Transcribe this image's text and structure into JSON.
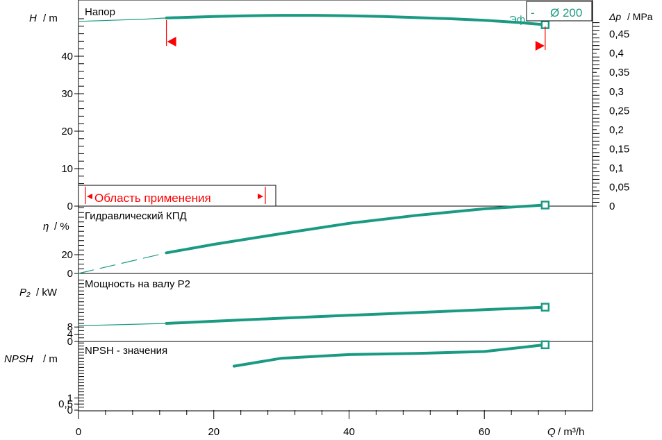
{
  "colors": {
    "curve": "#1a9a83",
    "axis": "#000000",
    "range": "#ff0000",
    "grid": "#000000"
  },
  "chart_data": [
    {
      "type": "line",
      "title": "Напор",
      "ylabel_var": "H",
      "ylabel_unit": "/ m",
      "ylim": [
        0,
        50
      ],
      "yticks": [
        0,
        10,
        20,
        30,
        40
      ],
      "y2label_var": "Δp",
      "y2label_unit": "/ MPa",
      "y2ticks": [
        "0",
        "0,05",
        "0,1",
        "0,15",
        "0,2",
        "0,25",
        "0,3",
        "0,35",
        "0,4",
        "0,45"
      ],
      "y2values": [
        0,
        0.05,
        0.1,
        0.15,
        0.2,
        0.25,
        0.3,
        0.35,
        0.4,
        0.45
      ],
      "series": [
        {
          "thin_x": [
            0,
            5,
            10,
            13
          ],
          "thin_y": [
            49.3,
            49.6,
            49.9,
            50.2
          ],
          "x": [
            13,
            20,
            25,
            30,
            35,
            40,
            45,
            50,
            55,
            60,
            65,
            69
          ],
          "y": [
            50.2,
            50.6,
            50.8,
            50.9,
            50.9,
            50.8,
            50.6,
            50.3,
            50.0,
            49.6,
            49.0,
            48.4
          ]
        }
      ],
      "operating_point": {
        "x": 69,
        "y": 48.4
      },
      "range_markers": [
        13,
        69
      ],
      "legend": {
        "prefix": "-",
        "label": "Ø 200",
        "overlap_text": "Эф"
      },
      "application_range_label": "Область применения"
    },
    {
      "type": "line",
      "title": "Гидравлический КПД",
      "ylabel_var": "η",
      "ylabel_unit": "/ %",
      "yticks": [
        0,
        20
      ],
      "series": [
        {
          "dash_x": [
            0,
            13
          ],
          "dash_y": [
            0,
            22
          ],
          "x": [
            13,
            20,
            30,
            40,
            50,
            60,
            69
          ],
          "y": [
            22,
            31,
            42.5,
            53.5,
            62,
            69,
            73
          ]
        }
      ],
      "operating_point": {
        "x": 69,
        "y": 73
      }
    },
    {
      "type": "line",
      "title": "Мощность на валу P2",
      "ylabel_var": "P₂",
      "ylabel_unit": "/ kW",
      "yticks": [
        0,
        4,
        8
      ],
      "series": [
        {
          "thin_x": [
            0,
            13
          ],
          "thin_y": [
            8.7,
            10.0
          ],
          "x": [
            13,
            20,
            30,
            40,
            50,
            60,
            69
          ],
          "y": [
            10.0,
            11.2,
            12.9,
            14.5,
            16.0,
            17.6,
            19.0
          ]
        }
      ],
      "operating_point": {
        "x": 69,
        "y": 19.0
      }
    },
    {
      "type": "line",
      "title": "NPSH - значения",
      "ylabel_var": "NPSH",
      "ylabel_unit": "/ m",
      "yticks": [
        "0",
        "0,5",
        "1"
      ],
      "series": [
        {
          "x": [
            23,
            30,
            40,
            50,
            60,
            69
          ],
          "y": [
            3.6,
            4.25,
            4.55,
            4.65,
            4.8,
            5.35
          ]
        }
      ],
      "operating_point": {
        "x": 69,
        "y": 5.35
      }
    }
  ],
  "x_axis": {
    "var": "Q",
    "unit": "/ m³/h",
    "ticks": [
      0,
      20,
      40,
      60
    ],
    "xlim": [
      0,
      76
    ]
  }
}
